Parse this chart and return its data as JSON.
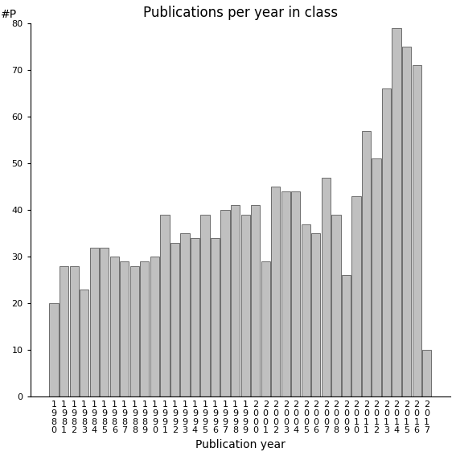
{
  "title": "Publications per year in class",
  "xlabel": "Publication year",
  "ylabel": "#P",
  "years": [
    "1980",
    "1981",
    "1982",
    "1983",
    "1984",
    "1985",
    "1986",
    "1987",
    "1988",
    "1989",
    "1990",
    "1991",
    "1992",
    "1993",
    "1994",
    "1995",
    "1996",
    "1997",
    "1998",
    "1999",
    "2000",
    "2001",
    "2002",
    "2003",
    "2004",
    "2005",
    "2006",
    "2007",
    "2008",
    "2009",
    "2010",
    "2011",
    "2012",
    "2013",
    "2014",
    "2015",
    "2016",
    "2017"
  ],
  "values": [
    20,
    28,
    28,
    23,
    32,
    32,
    30,
    29,
    28,
    29,
    30,
    39,
    33,
    35,
    34,
    39,
    34,
    40,
    41,
    39,
    41,
    29,
    45,
    44,
    44,
    37,
    35,
    47,
    39,
    26,
    43,
    57,
    51,
    66,
    79,
    75,
    71,
    10
  ],
  "bar_color": "#c0c0c0",
  "bar_edge_color": "#404040",
  "ylim": [
    0,
    80
  ],
  "yticks": [
    0,
    10,
    20,
    30,
    40,
    50,
    60,
    70,
    80
  ],
  "background_color": "#ffffff",
  "title_fontsize": 12,
  "axis_label_fontsize": 10,
  "tick_fontsize": 8
}
